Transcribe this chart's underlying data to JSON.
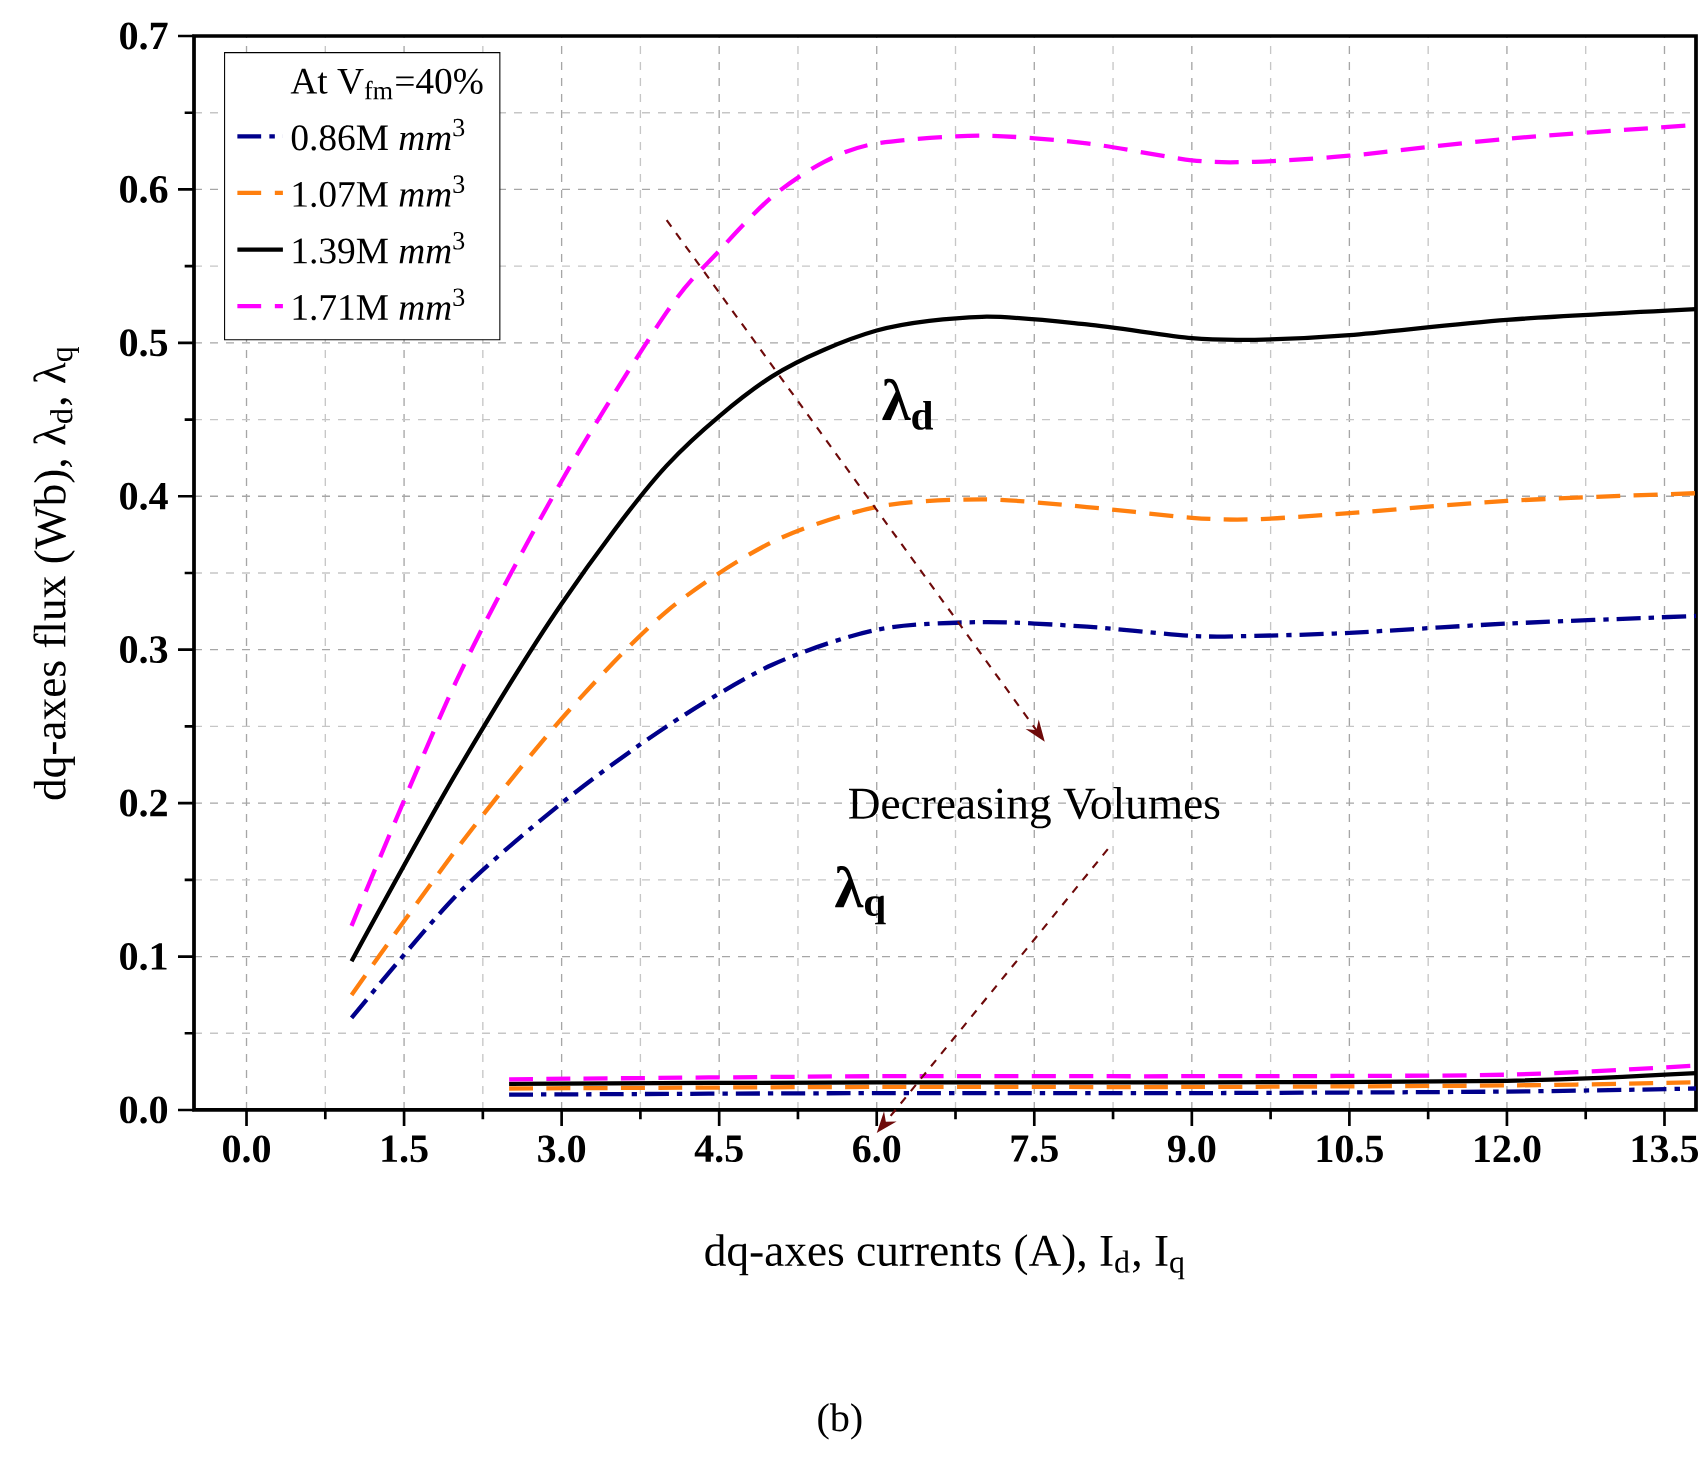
{
  "chart_data": {
    "type": "line",
    "xlabel": "dq-axes currents (A), I$_{d}$, I$_{q}$",
    "ylabel": "dq-axes flux (Wb), λ$_{d}$, λ$_{q}$",
    "legend_title": "At V$_{fm}$=40%",
    "xlim": [
      -0.5,
      13.8
    ],
    "ylim": [
      0,
      0.7
    ],
    "xticks": [
      {
        "value": 0,
        "label": "0.0"
      },
      {
        "value": 0.75,
        "label": null
      },
      {
        "value": 1.5,
        "label": "1.5"
      },
      {
        "value": 2.25,
        "label": null
      },
      {
        "value": 3,
        "label": "3.0"
      },
      {
        "value": 3.75,
        "label": null
      },
      {
        "value": 4.5,
        "label": "4.5"
      },
      {
        "value": 5.25,
        "label": null
      },
      {
        "value": 6,
        "label": "6.0"
      },
      {
        "value": 6.75,
        "label": null
      },
      {
        "value": 7.5,
        "label": "7.5"
      },
      {
        "value": 8.25,
        "label": null
      },
      {
        "value": 9,
        "label": "9.0"
      },
      {
        "value": 9.75,
        "label": null
      },
      {
        "value": 10.5,
        "label": "10.5"
      },
      {
        "value": 11.25,
        "label": null
      },
      {
        "value": 12,
        "label": "12.0"
      },
      {
        "value": 12.75,
        "label": null
      },
      {
        "value": 13.5,
        "label": "13.5"
      }
    ],
    "yticks": [
      {
        "value": 0,
        "label": "0.0"
      },
      {
        "value": 0.05,
        "label": null
      },
      {
        "value": 0.1,
        "label": "0.1"
      },
      {
        "value": 0.15,
        "label": null
      },
      {
        "value": 0.2,
        "label": "0.2"
      },
      {
        "value": 0.25,
        "label": null
      },
      {
        "value": 0.3,
        "label": "0.3"
      },
      {
        "value": 0.35,
        "label": null
      },
      {
        "value": 0.4,
        "label": "0.4"
      },
      {
        "value": 0.45,
        "label": null
      },
      {
        "value": 0.5,
        "label": "0.5"
      },
      {
        "value": 0.55,
        "label": null
      },
      {
        "value": 0.6,
        "label": "0.6"
      },
      {
        "value": 0.65,
        "label": null
      },
      {
        "value": 0.7,
        "label": "0.7"
      }
    ],
    "grid": true,
    "legend": "top left",
    "series": [
      {
        "name": "0.86M *mm*$^{3}$",
        "color": "#00008b",
        "line_style": "dashdot",
        "x": [
          1,
          2,
          3,
          4,
          5,
          6,
          7,
          8,
          9,
          9.6,
          10.5,
          12,
          13.8
        ],
        "values": [
          0.06,
          0.14,
          0.2,
          0.25,
          0.29,
          0.313,
          0.318,
          0.315,
          0.309,
          0.309,
          0.311,
          0.317,
          0.322
        ]
      },
      {
        "name": "1.07M *mm*$^{3}$",
        "color": "#ff7f0e",
        "line_style": "dashed",
        "x": [
          1,
          2,
          3,
          4,
          5,
          6,
          7,
          8,
          9,
          9.6,
          10.5,
          12,
          13.8
        ],
        "values": [
          0.075,
          0.17,
          0.255,
          0.325,
          0.37,
          0.393,
          0.398,
          0.393,
          0.386,
          0.385,
          0.389,
          0.397,
          0.402
        ]
      },
      {
        "name": "1.39M *mm*$^{3}$",
        "color": "#000000",
        "line_style": "solid",
        "x": [
          1,
          2,
          3,
          4,
          5,
          6,
          7,
          8,
          9,
          9.6,
          10.5,
          12,
          13.8
        ],
        "values": [
          0.097,
          0.22,
          0.33,
          0.42,
          0.478,
          0.508,
          0.517,
          0.512,
          0.503,
          0.502,
          0.505,
          0.515,
          0.522
        ]
      },
      {
        "name": "1.71M *mm*$^{3}$",
        "color": "#ff00ff",
        "line_style": "dashed",
        "x": [
          1,
          2,
          3,
          4,
          4.5,
          5,
          5.5,
          6,
          7,
          8,
          9,
          9.6,
          10.5,
          12,
          13.8
        ],
        "values": [
          0.12,
          0.28,
          0.41,
          0.52,
          0.56,
          0.595,
          0.618,
          0.63,
          0.635,
          0.63,
          0.619,
          0.618,
          0.622,
          0.633,
          0.642
        ]
      },
      {
        "color": "#00008b",
        "line_style": "dashdot",
        "x": [
          2.5,
          6,
          9,
          12,
          13.8
        ],
        "values": [
          0.01,
          0.011,
          0.011,
          0.012,
          0.014
        ]
      },
      {
        "color": "#ff7f0e",
        "line_style": "dashed",
        "x": [
          2.5,
          6,
          9,
          12,
          13.8
        ],
        "values": [
          0.014,
          0.015,
          0.015,
          0.016,
          0.018
        ]
      },
      {
        "color": "#000000",
        "line_style": "solid",
        "x": [
          2.5,
          6,
          9,
          12,
          13.8
        ],
        "values": [
          0.017,
          0.018,
          0.018,
          0.019,
          0.024
        ]
      },
      {
        "color": "#ff00ff",
        "line_style": "dashed",
        "x": [
          2.5,
          6,
          9,
          12,
          13.8
        ],
        "values": [
          0.02,
          0.022,
          0.022,
          0.023,
          0.029
        ]
      }
    ],
    "annotations": [
      "λ$_{d}$",
      "Decreasing Volumes",
      "λ$_{q}$",
      "(b)"
    ]
  }
}
